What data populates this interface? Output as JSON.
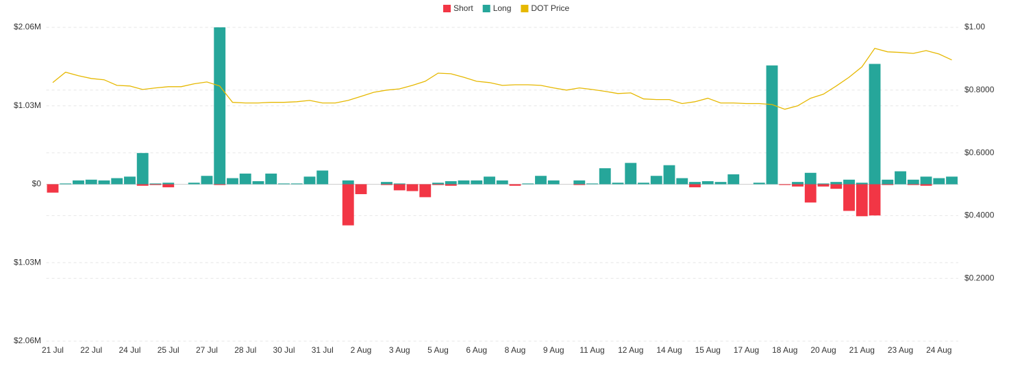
{
  "chart_data": {
    "type": "bar",
    "categories": [
      "21 Jul",
      null,
      null,
      "22 Jul",
      null,
      null,
      "24 Jul",
      null,
      null,
      "25 Jul",
      null,
      null,
      "27 Jul",
      null,
      null,
      "28 Jul",
      null,
      null,
      "30 Jul",
      null,
      null,
      "31 Jul",
      null,
      null,
      "2 Aug",
      null,
      null,
      "3 Aug",
      null,
      null,
      "5 Aug",
      null,
      null,
      "6 Aug",
      null,
      null,
      "8 Aug",
      null,
      null,
      "9 Aug",
      null,
      null,
      "11 Aug",
      null,
      null,
      "12 Aug",
      null,
      null,
      "14 Aug",
      null,
      null,
      "15 Aug",
      null,
      null,
      "17 Aug",
      null,
      null,
      "18 Aug",
      null,
      null,
      "20 Aug",
      null,
      null,
      "21 Aug",
      null,
      null,
      "23 Aug",
      null,
      null,
      "24 Aug",
      null
    ],
    "series": [
      {
        "name": "Short",
        "color": "#f23645",
        "values": [
          -110000,
          0,
          0,
          0,
          0,
          0,
          0,
          -20000,
          -10000,
          -40000,
          0,
          0,
          0,
          -10000,
          0,
          0,
          0,
          0,
          0,
          0,
          0,
          0,
          0,
          -540000,
          -130000,
          0,
          -10000,
          -80000,
          -90000,
          -170000,
          -10000,
          -20000,
          0,
          0,
          0,
          0,
          -20000,
          0,
          0,
          0,
          0,
          -10000,
          0,
          0,
          0,
          0,
          0,
          0,
          0,
          0,
          -40000,
          0,
          0,
          0,
          0,
          0,
          0,
          -10000,
          -30000,
          -240000,
          -30000,
          -60000,
          -350000,
          -420000,
          -410000,
          -10000,
          0,
          -10000,
          -20000,
          0,
          0
        ]
      },
      {
        "name": "Long",
        "color": "#26a69a",
        "values": [
          0,
          10000,
          50000,
          60000,
          50000,
          80000,
          100000,
          410000,
          10000,
          20000,
          0,
          20000,
          110000,
          2060000,
          80000,
          140000,
          40000,
          140000,
          10000,
          10000,
          100000,
          180000,
          0,
          50000,
          0,
          0,
          30000,
          10000,
          0,
          0,
          20000,
          40000,
          50000,
          50000,
          100000,
          50000,
          0,
          10000,
          110000,
          50000,
          0,
          50000,
          10000,
          210000,
          20000,
          280000,
          20000,
          110000,
          250000,
          80000,
          30000,
          40000,
          30000,
          130000,
          0,
          20000,
          1560000,
          0,
          30000,
          150000,
          10000,
          30000,
          60000,
          20000,
          1580000,
          60000,
          170000,
          60000,
          100000,
          80000,
          100000
        ]
      },
      {
        "name": "DOT Price",
        "color": "#e6b800",
        "type": "line",
        "axis": "y2",
        "values": [
          0.824,
          0.857,
          0.846,
          0.837,
          0.833,
          0.815,
          0.813,
          0.802,
          0.807,
          0.811,
          0.811,
          0.82,
          0.826,
          0.813,
          0.761,
          0.759,
          0.759,
          0.761,
          0.761,
          0.763,
          0.767,
          0.759,
          0.759,
          0.767,
          0.78,
          0.793,
          0.8,
          0.804,
          0.815,
          0.828,
          0.854,
          0.852,
          0.841,
          0.828,
          0.824,
          0.815,
          0.817,
          0.817,
          0.815,
          0.807,
          0.8,
          0.807,
          0.802,
          0.796,
          0.789,
          0.791,
          0.772,
          0.77,
          0.77,
          0.757,
          0.763,
          0.774,
          0.759,
          0.759,
          0.757,
          0.757,
          0.754,
          0.739,
          0.75,
          0.774,
          0.787,
          0.813,
          0.841,
          0.874,
          0.933,
          0.922,
          0.92,
          0.917,
          0.926,
          0.915,
          0.896
        ]
      }
    ],
    "ylim": [
      -2060000,
      2060000
    ],
    "yticks": [
      {
        "value": -2060000,
        "label": "$2.06M"
      },
      {
        "value": -1030000,
        "label": "$1.03M"
      },
      {
        "value": 0,
        "label": "$0"
      },
      {
        "value": 1030000,
        "label": "$1.03M"
      },
      {
        "value": 2060000,
        "label": "$2.06M"
      }
    ],
    "y2lim": [
      0,
      1.0
    ],
    "y2ticks": [
      {
        "value": 0.2,
        "label": "$0.2000"
      },
      {
        "value": 0.4,
        "label": "$0.4000"
      },
      {
        "value": 0.6,
        "label": "$0.6000"
      },
      {
        "value": 0.8,
        "label": "$0.8000"
      },
      {
        "value": 1.0,
        "label": "$1.00"
      }
    ],
    "grid": true,
    "legend": "top"
  }
}
